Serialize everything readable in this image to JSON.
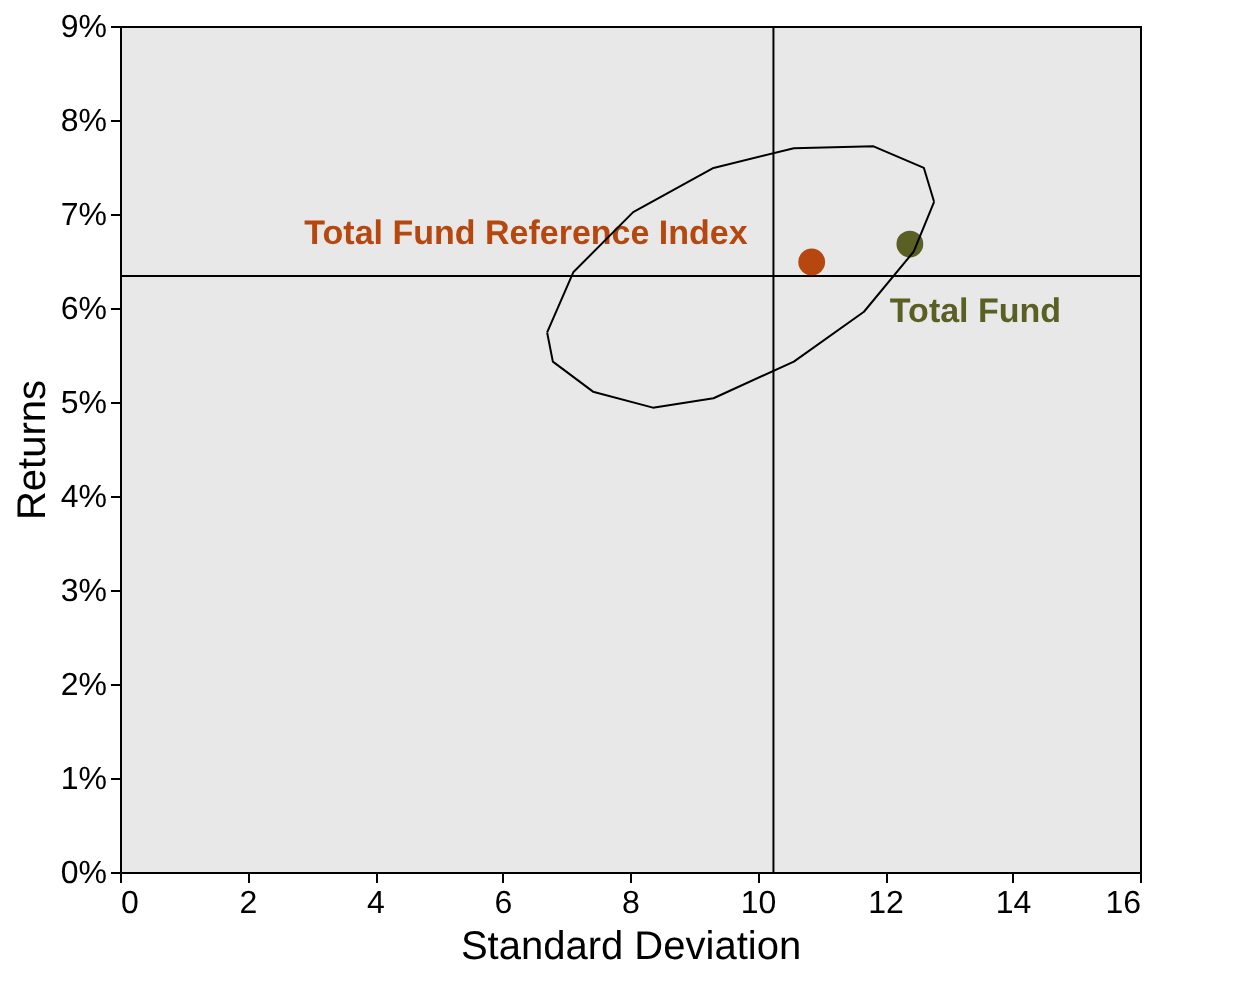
{
  "chart_data": {
    "type": "scatter",
    "xlabel": "Standard Deviation",
    "ylabel": "Returns",
    "xlim": [
      0,
      16
    ],
    "xticks": [
      0,
      2,
      4,
      6,
      8,
      10,
      12,
      14,
      16
    ],
    "ylim": [
      0,
      9
    ],
    "yticks": [
      {
        "value": 0,
        "label": "0%"
      },
      {
        "value": 1,
        "label": "1%"
      },
      {
        "value": 2,
        "label": "2%"
      },
      {
        "value": 3,
        "label": "3%"
      },
      {
        "value": 4,
        "label": "4%"
      },
      {
        "value": 5,
        "label": "5%"
      },
      {
        "value": 6,
        "label": "6%"
      },
      {
        "value": 7,
        "label": "7%"
      },
      {
        "value": 8,
        "label": "8%"
      },
      {
        "value": 9,
        "label": "9%"
      }
    ],
    "marker": "circle",
    "series": [
      {
        "name": "Total Fund Reference Index",
        "color": "#b5470f",
        "x": [
          10.85
        ],
        "values": [
          6.49
        ]
      },
      {
        "name": "Total Fund",
        "color": "#5a5f23",
        "x": [
          12.39
        ],
        "values": [
          6.68
        ]
      },
      {
        "type": "line",
        "marker": "none",
        "color": "#000000",
        "x": [
          6.7,
          7.11,
          8.05,
          9.31,
          10.57,
          11.82,
          12.61,
          12.77
        ],
        "values": [
          5.74,
          6.38,
          7.02,
          7.49,
          7.7,
          7.72,
          7.49,
          7.13
        ]
      },
      {
        "type": "line",
        "marker": "none",
        "color": "#000000",
        "x": [
          6.7,
          6.79,
          7.42,
          8.36,
          9.31,
          10.57,
          11.67,
          12.45,
          12.77
        ],
        "values": [
          5.74,
          5.43,
          5.11,
          4.94,
          5.04,
          5.43,
          5.96,
          6.6,
          7.13
        ]
      }
    ],
    "ref_lines": [
      {
        "axis": "x",
        "value": 10.25
      },
      {
        "axis": "y",
        "value": 6.34
      }
    ]
  }
}
